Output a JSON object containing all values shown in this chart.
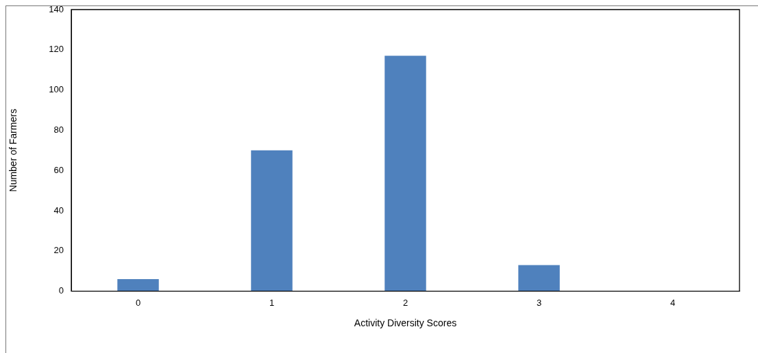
{
  "chart_data": {
    "type": "bar",
    "xlabel": "Activity Diversity Scores",
    "ylabel": "Number of Farmers",
    "categories": [
      "0",
      "1",
      "2",
      "3",
      "4"
    ],
    "values": [
      6,
      70,
      117,
      13,
      0
    ],
    "color": "#4f81bd",
    "ylim": [
      0,
      140
    ],
    "yticks": [
      0,
      20,
      40,
      60,
      80,
      100,
      120,
      140
    ],
    "grid": false,
    "legend": false
  }
}
